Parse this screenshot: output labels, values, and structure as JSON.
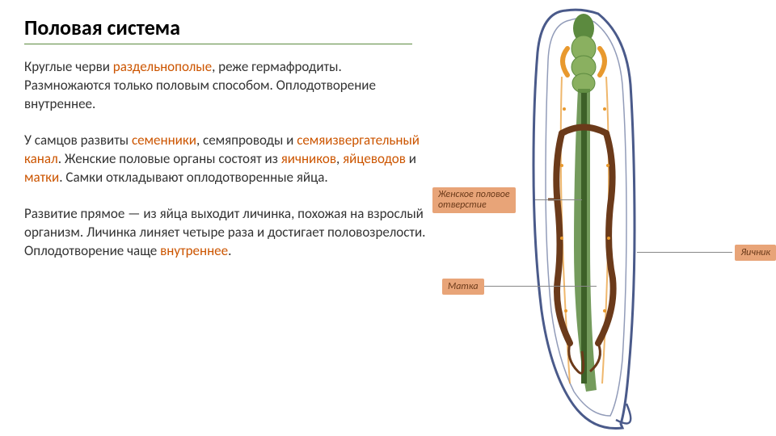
{
  "title": "Половая система",
  "paragraphs": {
    "p1_parts": [
      "Круглые черви ",
      "раздельнополые",
      ", реже гермафродиты. Размножаются только половым способом. Оплодотворение внутреннее."
    ],
    "p2_parts": [
      "У самцов развиты ",
      "семенники",
      ", семяпроводы и ",
      "семяизвергательный канал",
      ". Женские половые органы состоят из ",
      "яичников",
      ", ",
      "яйцеводов",
      " и ",
      "матки",
      ". Самки откладывают оплодотворенные яйца."
    ],
    "p3_parts": [
      "Развитие прямое — из яйца выходит личинка, похожая на взрослый организм. Личинка линяет четыре раза и достигает половозрелости. Оплодотворение чаще ",
      "внутреннее",
      "."
    ]
  },
  "labels": {
    "female_opening": "Женское половое\nотверстие",
    "uterus": "Матка",
    "ovary": "Яичник"
  },
  "diagram": {
    "body_outline_color": "#4a5a8a",
    "body_fill": "#ffffff",
    "digestive_color": "#5c8a3f",
    "digestive_light": "#8ab060",
    "reproductive_color": "#6b3a1a",
    "nerve_color": "#e8992e",
    "label_bg": "#e8a478",
    "label_text": "#6b3a1a"
  }
}
